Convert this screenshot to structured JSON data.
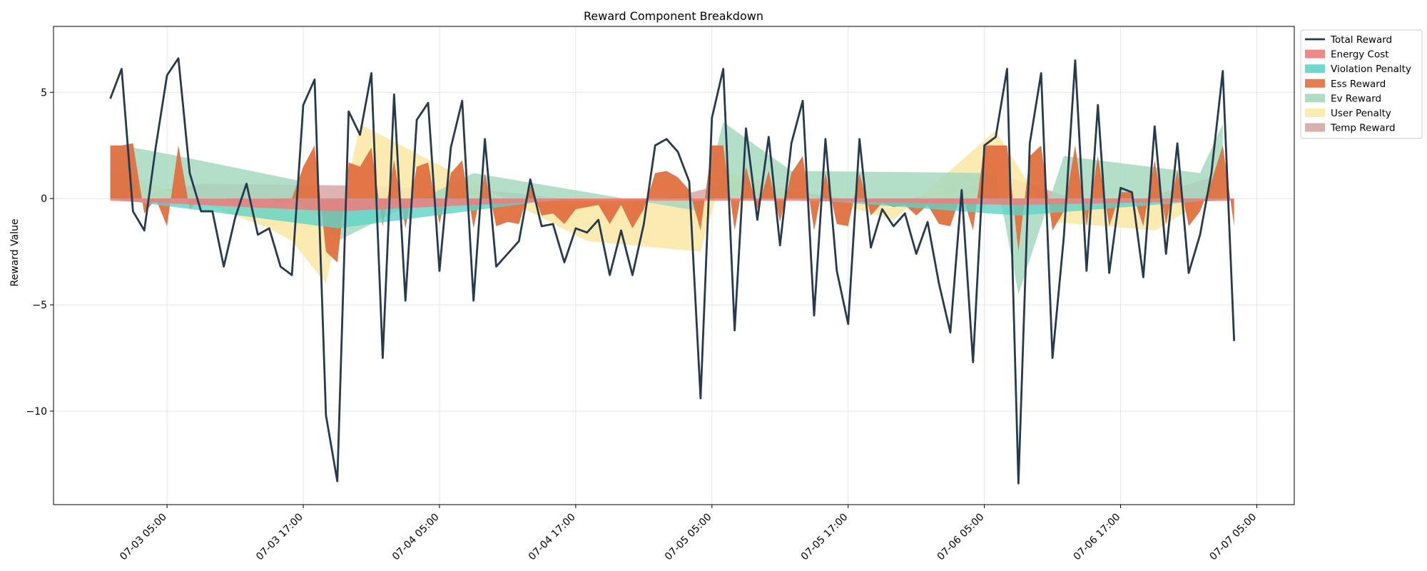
{
  "chart_data": {
    "type": "area",
    "title": "Reward Component Breakdown",
    "xlabel": "",
    "ylabel": "Reward Value",
    "x_ticks": [
      "07-03 05:00",
      "07-03 17:00",
      "07-04 05:00",
      "07-04 17:00",
      "07-05 05:00",
      "07-05 17:00",
      "07-06 05:00",
      "07-06 17:00",
      "07-07 05:00"
    ],
    "x_tick_hours": [
      5,
      17,
      29,
      41,
      53,
      65,
      77,
      89,
      101
    ],
    "x_range_hours": [
      -5.0,
      104.3
    ],
    "y_ticks": [
      -10,
      -5,
      0,
      5
    ],
    "y_tick_labels": [
      "−10",
      "−5",
      "0",
      "5"
    ],
    "ylim": [
      -14.4,
      8.1
    ],
    "grid": true,
    "legend_position": "outside-upper-right",
    "colors": {
      "total": "#263a4f",
      "energy_cost": "#f07b7b",
      "violation_penalty": "#5fd3c7",
      "ess_reward": "#e07040",
      "ev_reward": "#a6d8be",
      "user_penalty": "#fbe9a9",
      "temp_reward": "#d7a6a6"
    },
    "series": [
      {
        "name": "Total Reward",
        "kind": "line",
        "color": "#263a4f",
        "x_hours": [
          0,
          1,
          2,
          3,
          4,
          5,
          6,
          7,
          8,
          9,
          10,
          11,
          12,
          13,
          14,
          15,
          16,
          17,
          18,
          19,
          20,
          21,
          22,
          23,
          24,
          25,
          26,
          27,
          28,
          29,
          30,
          31,
          32,
          33,
          34,
          35,
          36,
          37,
          38,
          39,
          40,
          41,
          42,
          43,
          44,
          45,
          46,
          47,
          48,
          49,
          50,
          51,
          52,
          53,
          54,
          55,
          56,
          57,
          58,
          59,
          60,
          61,
          62,
          63,
          64,
          65,
          66,
          67,
          68,
          69,
          70,
          71,
          72,
          73,
          74,
          75,
          76,
          77,
          78,
          79,
          80,
          81,
          82,
          83,
          84,
          85,
          86,
          87,
          88,
          89,
          90,
          91,
          92,
          93,
          94,
          95,
          96,
          97,
          98,
          99
        ],
        "values": [
          4.7,
          6.1,
          -0.6,
          -1.5,
          2.4,
          5.8,
          6.6,
          1.2,
          -0.6,
          -0.6,
          -3.2,
          -0.9,
          0.7,
          -1.7,
          -1.4,
          -3.2,
          -3.6,
          4.4,
          5.6,
          -10.2,
          -13.3,
          4.1,
          3.0,
          5.9,
          -7.5,
          4.9,
          -4.8,
          3.7,
          4.5,
          -3.4,
          2.4,
          4.6,
          -4.8,
          2.8,
          -3.2,
          -2.6,
          -2.0,
          0.9,
          -1.3,
          -1.2,
          -3.0,
          -1.4,
          -1.6,
          -1.0,
          -3.6,
          -1.5,
          -3.6,
          -1.2,
          2.5,
          2.8,
          2.2,
          0.8,
          -9.4,
          3.8,
          6.1,
          -6.2,
          3.3,
          -1.0,
          2.9,
          -2.2,
          2.6,
          4.6,
          -5.5,
          2.8,
          -3.4,
          -5.9,
          2.8,
          -2.3,
          -0.5,
          -1.3,
          -0.7,
          -2.6,
          -1.1,
          -4.0,
          -6.3,
          0.4,
          -7.7,
          2.5,
          2.9,
          6.1,
          -13.4,
          2.6,
          5.9,
          -7.5,
          -1.8,
          6.5,
          -3.4,
          4.4,
          -3.5,
          0.5,
          0.3,
          -3.7,
          3.4,
          -2.6,
          2.6,
          -3.5,
          -1.7,
          1.2,
          6.0,
          -6.7
        ]
      },
      {
        "name": "Energy Cost",
        "kind": "area",
        "color": "#f07b7b",
        "x_hours": [
          0,
          20,
          40,
          60,
          80,
          99
        ],
        "values": [
          -0.1,
          -0.6,
          -0.1,
          -0.1,
          -0.3,
          -0.1
        ]
      },
      {
        "name": "Violation Penalty",
        "kind": "area",
        "color": "#5fd3c7",
        "x_hours": [
          0,
          20,
          40,
          60,
          80,
          99
        ],
        "values": [
          0,
          -1.4,
          0,
          0,
          -0.8,
          0
        ]
      },
      {
        "name": "Ess Reward",
        "kind": "area",
        "color": "#e07040",
        "x_hours": [
          0,
          1,
          2,
          3,
          4,
          5,
          6,
          7,
          8,
          9,
          10,
          11,
          12,
          13,
          14,
          15,
          16,
          17,
          18,
          19,
          20,
          21,
          22,
          23,
          24,
          25,
          26,
          27,
          28,
          29,
          30,
          31,
          32,
          33,
          34,
          35,
          36,
          37,
          38,
          39,
          40,
          41,
          42,
          43,
          44,
          45,
          46,
          47,
          48,
          49,
          50,
          51,
          52,
          53,
          54,
          55,
          56,
          57,
          58,
          59,
          60,
          61,
          62,
          63,
          64,
          65,
          66,
          67,
          68,
          69,
          70,
          71,
          72,
          73,
          74,
          75,
          76,
          77,
          78,
          79,
          80,
          81,
          82,
          83,
          84,
          85,
          86,
          87,
          88,
          89,
          90,
          91,
          92,
          93,
          94,
          95,
          96,
          97,
          98,
          99
        ],
        "values": [
          2.5,
          2.5,
          2.6,
          -0.7,
          0,
          -1.3,
          2.5,
          -0.5,
          0,
          0,
          0,
          -0.3,
          0,
          0,
          0,
          -0.3,
          0,
          1.5,
          2.5,
          -2.5,
          -3.0,
          1.7,
          1.5,
          2.4,
          -1.3,
          1.8,
          -1.4,
          1.5,
          1.7,
          -1.2,
          1.2,
          1.8,
          -1.4,
          1.2,
          -1.3,
          -1.1,
          -1.2,
          0.6,
          -0.8,
          -0.7,
          -1.2,
          -0.5,
          -0.4,
          -0.3,
          -1.2,
          -0.3,
          -1.4,
          -0.5,
          1.2,
          1.3,
          1.0,
          0.4,
          -1.5,
          2.5,
          2.5,
          -1.5,
          1.5,
          -0.5,
          1.3,
          -1.1,
          1.2,
          2.0,
          -1.5,
          1.2,
          -1.2,
          -1.3,
          1.2,
          -0.8,
          -0.2,
          -0.4,
          -0.3,
          -0.8,
          -0.3,
          -1.2,
          -1.3,
          0.3,
          -1.5,
          2.5,
          2.5,
          2.5,
          -2.5,
          2.0,
          2.5,
          -1.5,
          -0.6,
          2.5,
          -1.3,
          2.0,
          -1.3,
          0.3,
          0.3,
          -1.3,
          1.8,
          -1.2,
          1.3,
          -1.3,
          -0.6,
          0.8,
          2.5,
          -1.3
        ]
      },
      {
        "name": "Ev Reward",
        "kind": "area",
        "color": "#a6d8be",
        "x_hours": [
          0,
          2,
          6,
          17,
          20,
          32,
          52,
          54,
          60,
          78,
          80,
          84,
          96,
          98
        ],
        "values": [
          2.2,
          2.4,
          2.0,
          0.8,
          -2.0,
          1.2,
          -0.6,
          3.6,
          1.3,
          1.2,
          -4.5,
          2.0,
          1.2,
          3.5
        ]
      },
      {
        "name": "User Penalty",
        "kind": "area",
        "color": "#fbe9a9",
        "x_hours": [
          0,
          14,
          16,
          19,
          22,
          42,
          52,
          54,
          69,
          78,
          83,
          92,
          98
        ],
        "values": [
          1.4,
          -1.4,
          -2.0,
          -4.0,
          3.5,
          -2.0,
          -2.5,
          1.3,
          -1.0,
          3.2,
          -1.1,
          -1.5,
          0.4
        ]
      },
      {
        "name": "Temp Reward",
        "kind": "area",
        "color": "#d7a6a6",
        "x_hours": [
          3,
          6,
          8,
          23,
          35,
          46,
          55,
          68,
          79,
          88,
          97
        ],
        "values": [
          0.3,
          0.5,
          0.7,
          0.6,
          0.3,
          -0.4,
          0.8,
          -0.3,
          1.0,
          -0.5,
          1.0
        ]
      }
    ]
  }
}
